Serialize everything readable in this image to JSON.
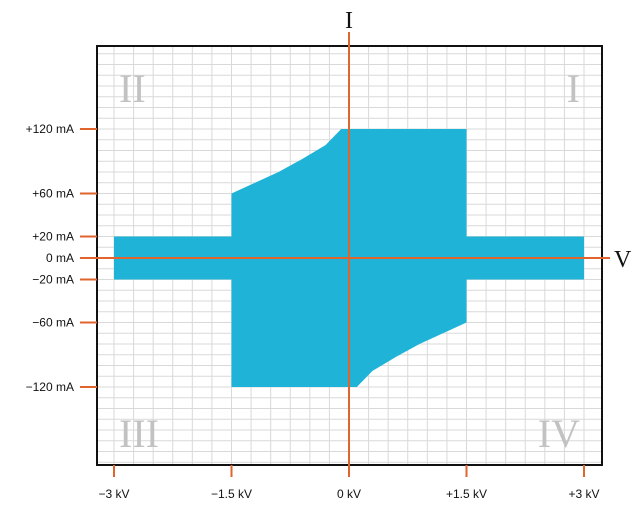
{
  "chart_data": {
    "type": "area",
    "title": "",
    "xlabel": "V",
    "ylabel": "I",
    "x_unit": "kV",
    "y_unit": "mA",
    "xlim": [
      -3.3,
      3.2
    ],
    "ylim": [
      -195,
      200
    ],
    "grid": true,
    "x_ticks": [
      {
        "value": -3,
        "label": "−3 kV"
      },
      {
        "value": -1.5,
        "label": "−1.5 kV"
      },
      {
        "value": 0,
        "label": "0 kV"
      },
      {
        "value": 1.5,
        "label": "+1.5 kV"
      },
      {
        "value": 3,
        "label": "+3 kV"
      }
    ],
    "y_ticks": [
      {
        "value": 120,
        "label": "+120 mA"
      },
      {
        "value": 60,
        "label": "+60 mA"
      },
      {
        "value": 20,
        "label": "+20 mA"
      },
      {
        "value": 0,
        "label": "0 mA"
      },
      {
        "value": -20,
        "label": "−20 mA"
      },
      {
        "value": -60,
        "label": "−60 mA"
      },
      {
        "value": -120,
        "label": "−120 mA"
      }
    ],
    "quadrants": [
      {
        "label": "I",
        "position": "top-right"
      },
      {
        "label": "II",
        "position": "top-left"
      },
      {
        "label": "III",
        "position": "bottom-left"
      },
      {
        "label": "IV",
        "position": "bottom-right"
      }
    ],
    "series": [
      {
        "color": "#1fb3d7",
        "outline": [
          [
            -3,
            20
          ],
          [
            -1.5,
            20
          ],
          [
            -1.5,
            60
          ],
          [
            -1.2,
            70
          ],
          [
            -0.9,
            80
          ],
          [
            -0.6,
            92
          ],
          [
            -0.3,
            105
          ],
          [
            -0.1,
            120
          ],
          [
            1.5,
            120
          ],
          [
            1.5,
            20
          ],
          [
            3,
            20
          ],
          [
            3,
            -20
          ],
          [
            1.5,
            -20
          ],
          [
            1.5,
            -60
          ],
          [
            1.2,
            -70
          ],
          [
            0.9,
            -80
          ],
          [
            0.6,
            -92
          ],
          [
            0.3,
            -105
          ],
          [
            0.1,
            -120
          ],
          [
            -1.5,
            -120
          ],
          [
            -1.5,
            -20
          ],
          [
            -3,
            -20
          ]
        ]
      }
    ],
    "colors": {
      "fill": "#1fb3d7",
      "axes": "#e0642c",
      "grid": "#d9d9d9",
      "frame": "#111111",
      "quadrant_text": "#c2c2c2"
    }
  }
}
